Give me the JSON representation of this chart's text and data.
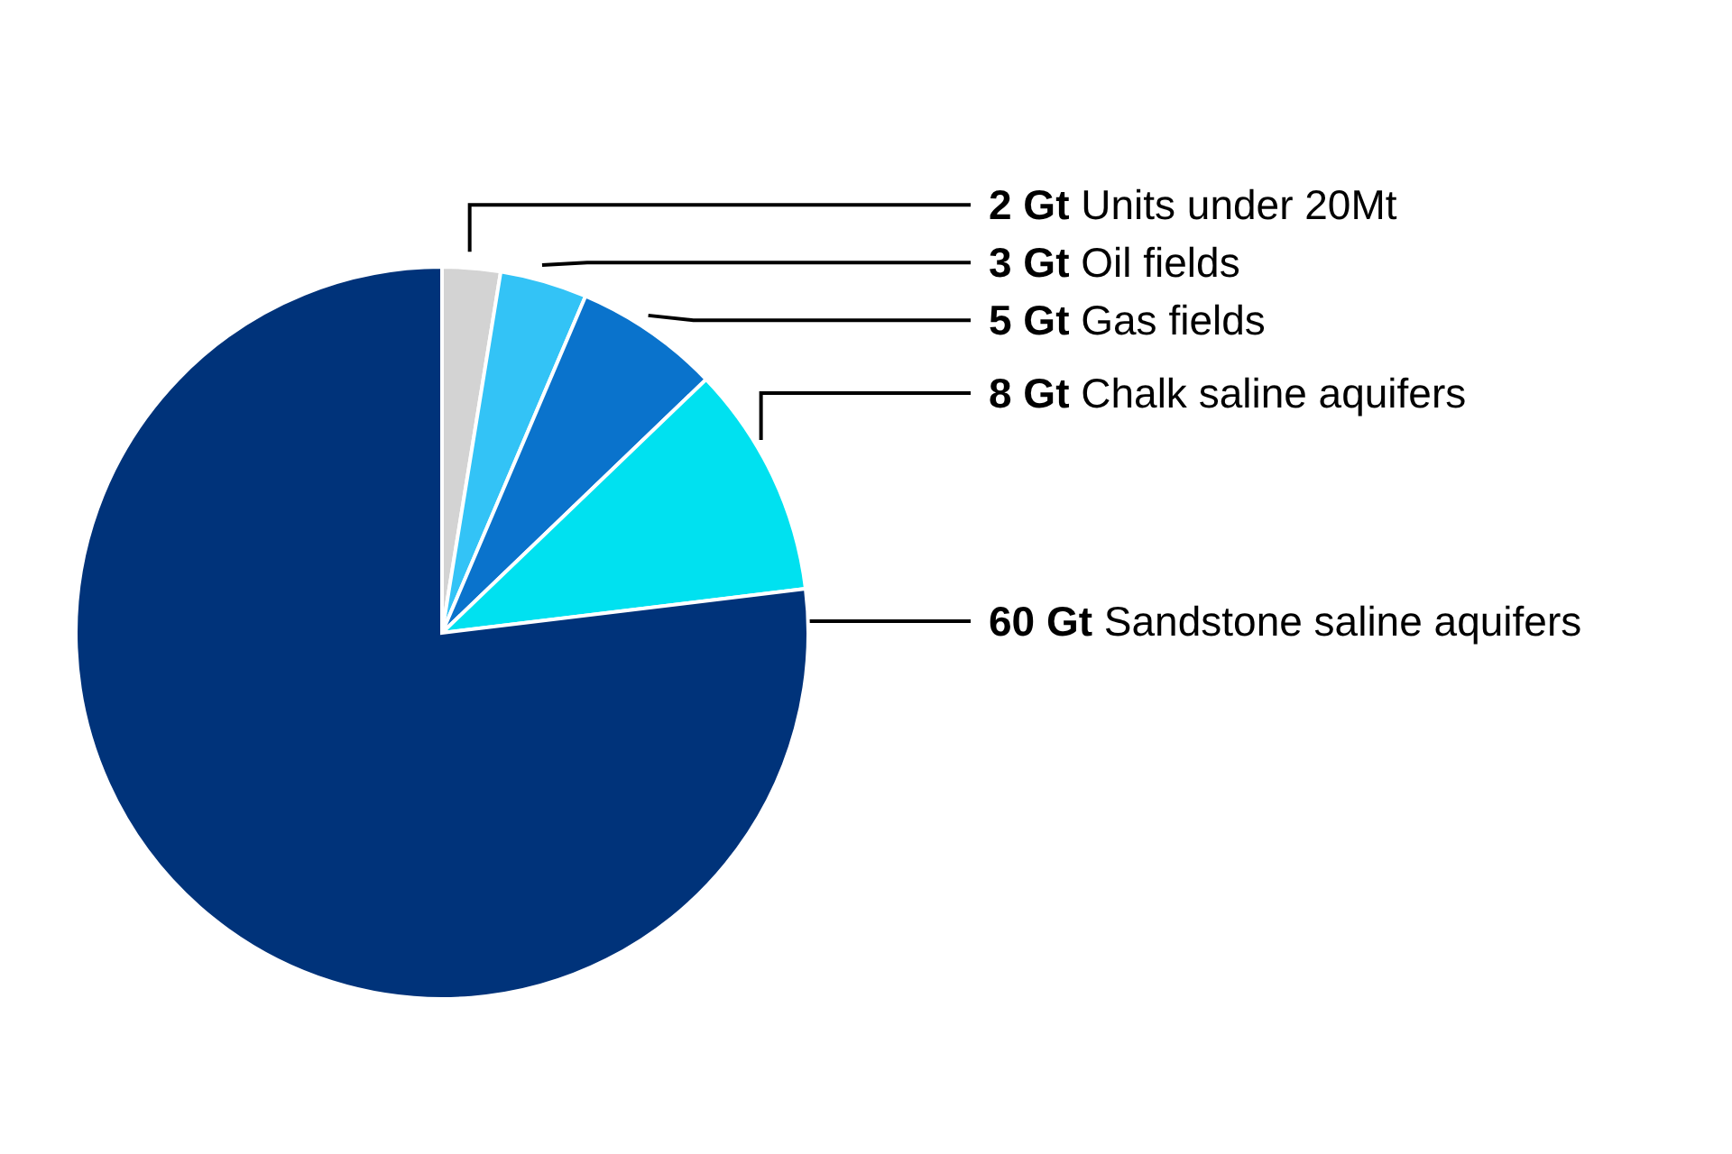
{
  "chart_data": {
    "type": "pie",
    "categories": [
      "Units under 20Mt",
      "Oil fields",
      "Gas fields",
      "Chalk saline aquifers",
      "Sandstone saline aquifers"
    ],
    "values": [
      2,
      3,
      5,
      8,
      60
    ],
    "value_labels": [
      "2 Gt",
      "3 Gt",
      "5 Gt",
      "8 Gt",
      "60 Gt"
    ],
    "colors": [
      "#d3d3d3",
      "#33c3f6",
      "#0a73cc",
      "#00e1f0",
      "#00337a"
    ]
  }
}
